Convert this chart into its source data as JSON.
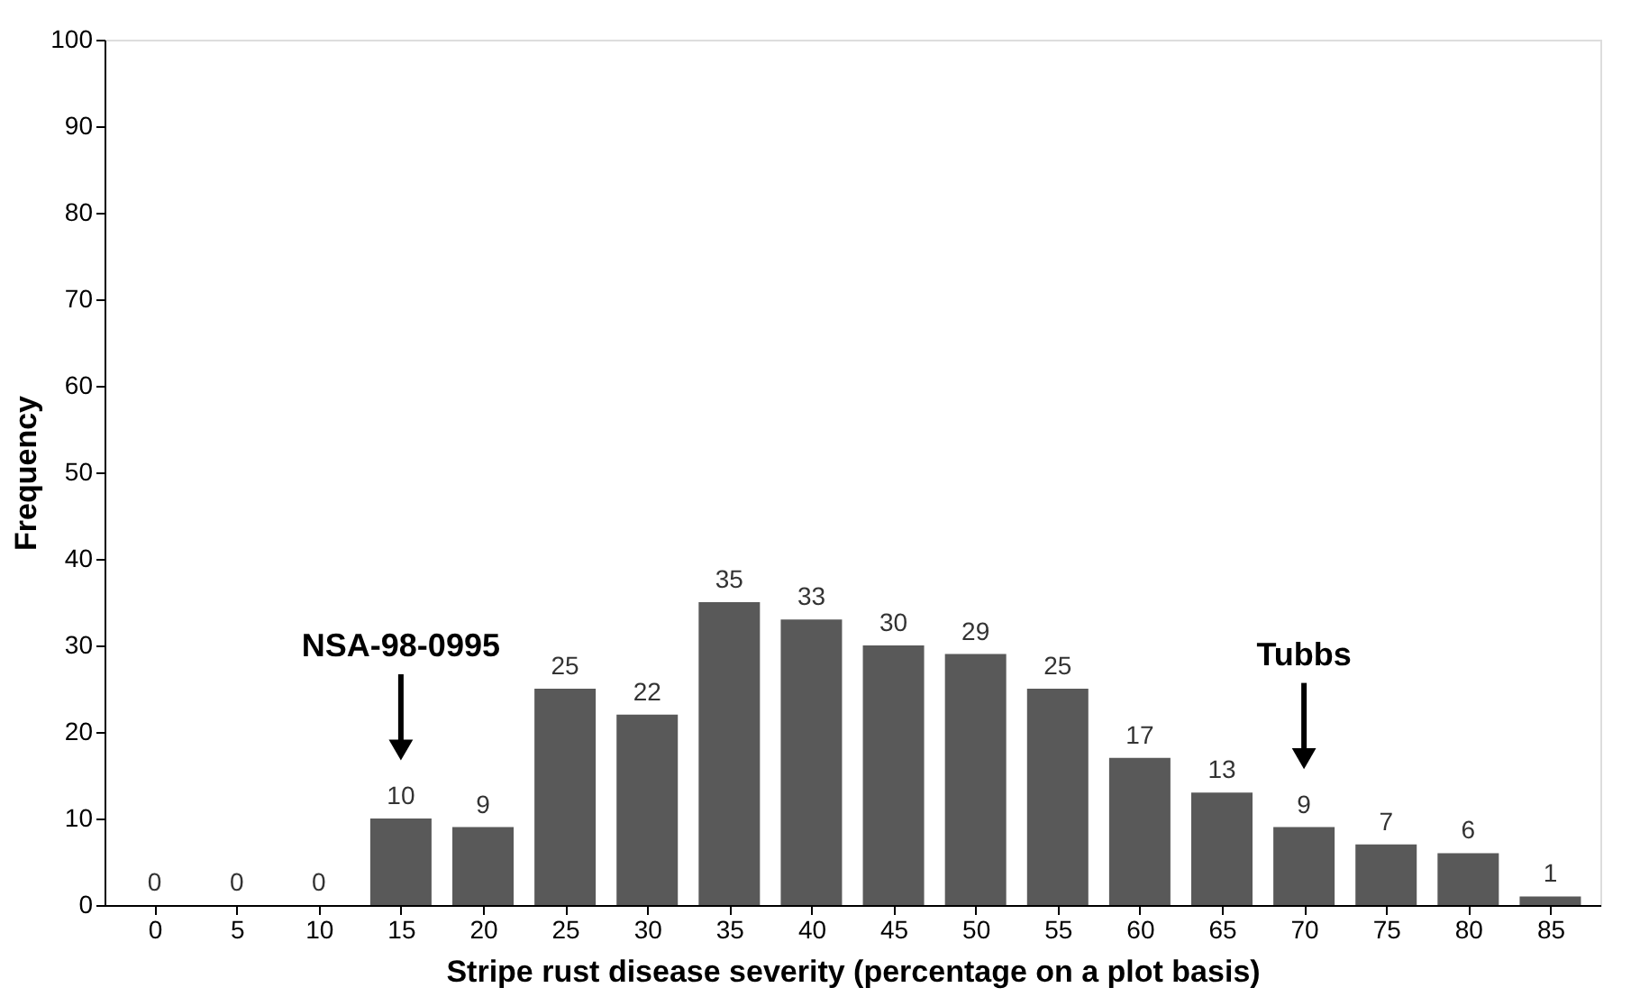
{
  "chart_data": {
    "type": "bar",
    "xlabel": "Stripe rust disease severity (percentage on a plot basis)",
    "ylabel": "Frequency",
    "categories": [
      "0",
      "5",
      "10",
      "15",
      "20",
      "25",
      "30",
      "35",
      "40",
      "45",
      "50",
      "55",
      "60",
      "65",
      "70",
      "75",
      "80",
      "85"
    ],
    "values": [
      0,
      0,
      0,
      10,
      9,
      25,
      22,
      35,
      33,
      30,
      29,
      25,
      17,
      13,
      9,
      7,
      6,
      1
    ],
    "color": "#595959",
    "ylim": [
      0,
      100
    ],
    "yticks": [
      0,
      10,
      20,
      30,
      40,
      50,
      60,
      70,
      80,
      90,
      100
    ],
    "grid": false,
    "data_labels": true,
    "annotations": [
      "NSA-98-0995",
      "Tubbs"
    ]
  }
}
